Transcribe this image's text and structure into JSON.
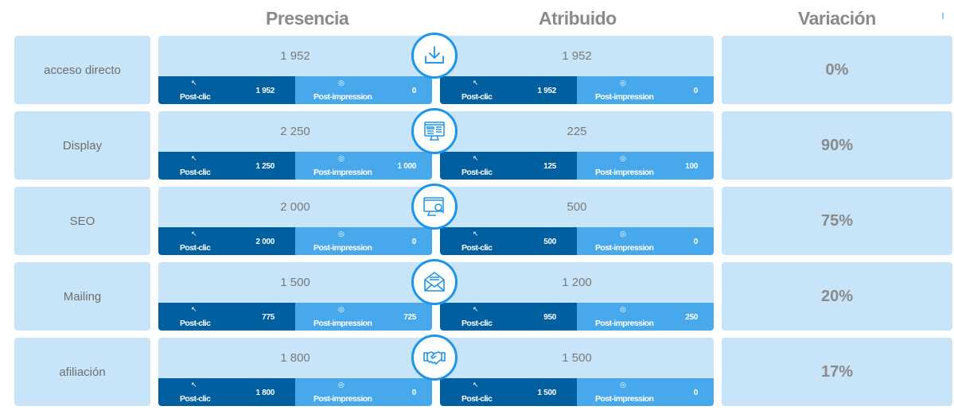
{
  "headers": {
    "presencia": "Presencia",
    "atribuido": "Atribuido",
    "variacion": "Variación"
  },
  "colors": {
    "panel_bg": "#c7e4f8",
    "post_clic_bg": "#005f9e",
    "post_impression_bg": "#47a9ec",
    "icon_ring": "#1e95ea",
    "text_gray": "#8a8a8a"
  },
  "rows": [
    {
      "channel": "acceso directo",
      "icon": "download-icon",
      "presencia": {
        "total": "1 952",
        "post_clic_label": "Post-clic",
        "post_clic": "1 952",
        "post_impression_label": "Post-impression",
        "post_impression": "0"
      },
      "atribuido": {
        "total": "1 952",
        "post_clic_label": "Post-clic",
        "post_clic": "1 952",
        "post_impression_label": "Post-impression",
        "post_impression": "0"
      },
      "variacion": "0%"
    },
    {
      "channel": "Display",
      "icon": "display-monitor-icon",
      "presencia": {
        "total": "2 250",
        "post_clic_label": "Post-clic",
        "post_clic": "1 250",
        "post_impression_label": "Post-impression",
        "post_impression": "1 000"
      },
      "atribuido": {
        "total": "225",
        "post_clic_label": "Post-clic",
        "post_clic": "125",
        "post_impression_label": "Post-impression",
        "post_impression": "100"
      },
      "variacion": "90%"
    },
    {
      "channel": "SEO",
      "icon": "search-monitor-icon",
      "presencia": {
        "total": "2 000",
        "post_clic_label": "Post-clic",
        "post_clic": "2 000",
        "post_impression_label": "Post-impression",
        "post_impression": "0"
      },
      "atribuido": {
        "total": "500",
        "post_clic_label": "Post-clic",
        "post_clic": "500",
        "post_impression_label": "Post-impression",
        "post_impression": "0"
      },
      "variacion": "75%"
    },
    {
      "channel": "Mailing",
      "icon": "envelope-icon",
      "presencia": {
        "total": "1 500",
        "post_clic_label": "Post-clic",
        "post_clic": "775",
        "post_impression_label": "Post-impression",
        "post_impression": "725"
      },
      "atribuido": {
        "total": "1 200",
        "post_clic_label": "Post-clic",
        "post_clic": "950",
        "post_impression_label": "Post-impression",
        "post_impression": "250"
      },
      "variacion": "20%"
    },
    {
      "channel": "afiliación",
      "icon": "handshake-icon",
      "presencia": {
        "total": "1 800",
        "post_clic_label": "Post-clic",
        "post_clic": "1 800",
        "post_impression_label": "Post-impression",
        "post_impression": "0"
      },
      "atribuido": {
        "total": "1 500",
        "post_clic_label": "Post-clic",
        "post_clic": "1 500",
        "post_impression_label": "Post-impression",
        "post_impression": "0"
      },
      "variacion": "17%"
    }
  ]
}
